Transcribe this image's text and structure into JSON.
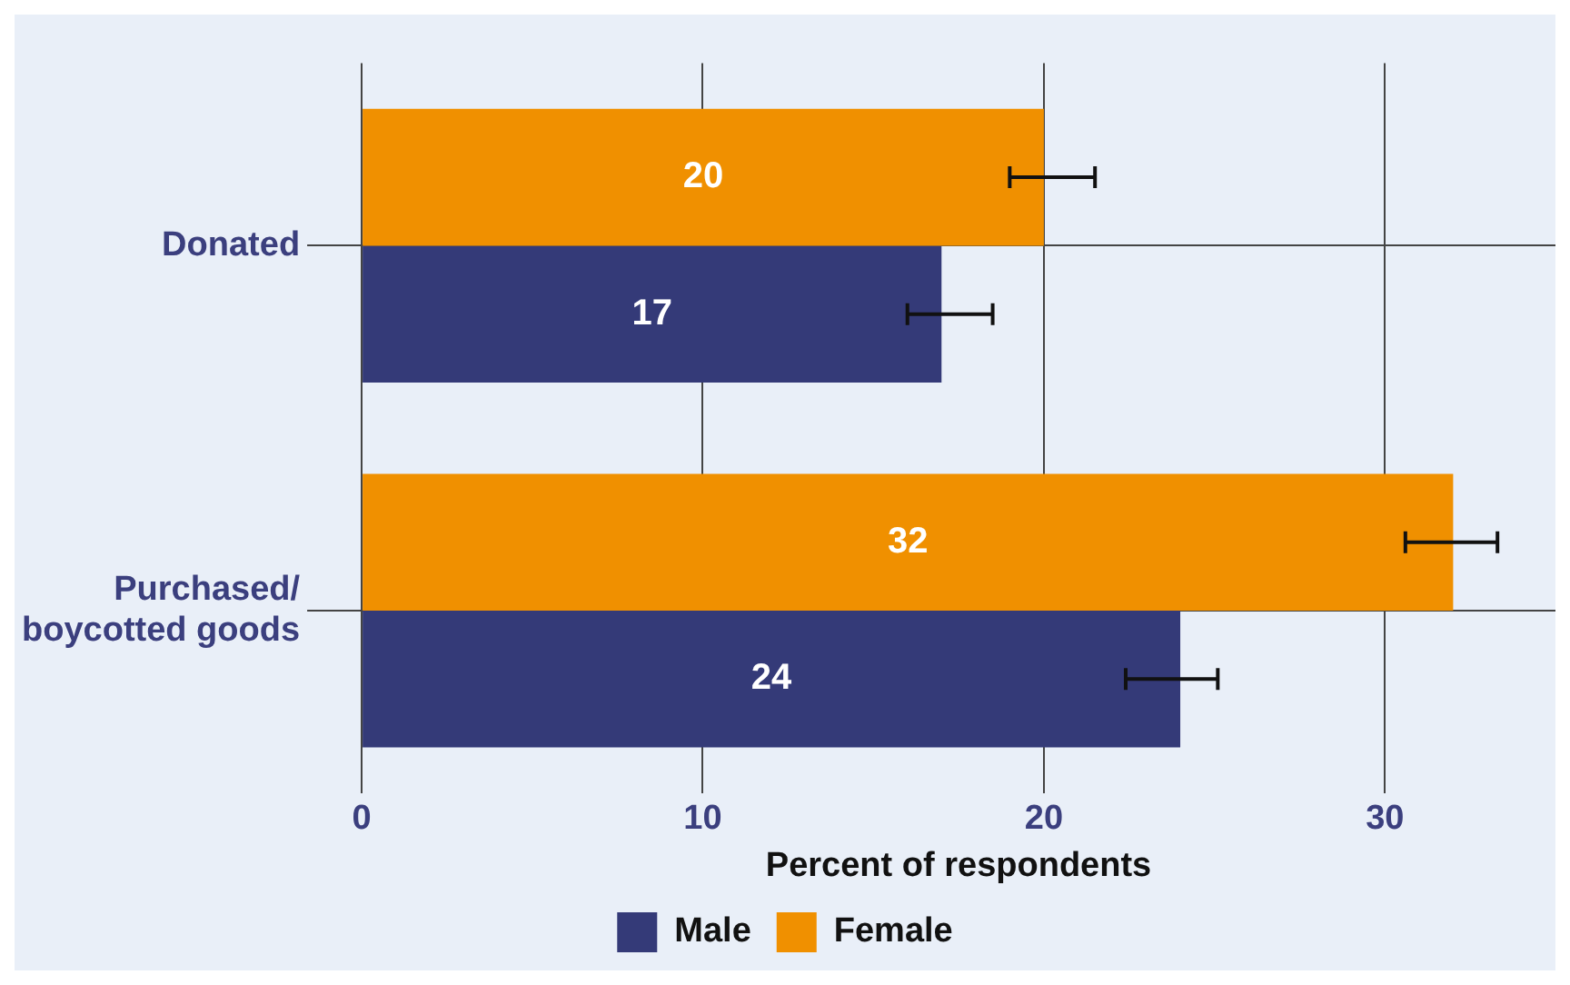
{
  "chart_data": {
    "type": "bar",
    "orientation": "horizontal",
    "categories": [
      "Donated",
      "Purchased/\nboycotted goods"
    ],
    "series": [
      {
        "name": "Male",
        "color": "#343a78",
        "values": [
          17,
          24
        ],
        "errors": [
          [
            16,
            18.5
          ],
          [
            22.4,
            25.1
          ]
        ]
      },
      {
        "name": "Female",
        "color": "#f09000",
        "values": [
          20,
          32
        ],
        "errors": [
          [
            19,
            21.5
          ],
          [
            30.6,
            33.3
          ]
        ]
      }
    ],
    "xlabel": "Percent of respondents",
    "xlim": [
      0,
      35
    ],
    "xticks": [
      0,
      10,
      20,
      30
    ],
    "grid": true,
    "legend": "bottom",
    "data_labels": true
  }
}
